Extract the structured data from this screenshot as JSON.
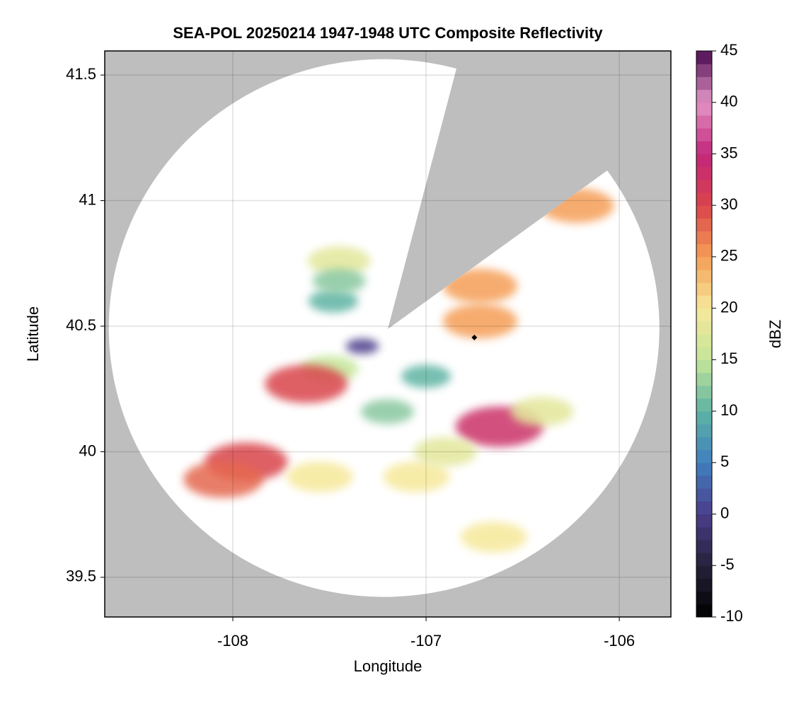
{
  "chart_data": {
    "type": "radar",
    "title": "SEA-POL 20250214 1947-1948 UTC Composite Reflectivity",
    "x_label": "Longitude",
    "y_label": "Latitude",
    "xlim": [
      -108.663,
      -105.733
    ],
    "xticks": [
      -108,
      -107,
      -106
    ],
    "ylim": [
      39.342,
      41.596
    ],
    "yticks": [
      39.5,
      40.0,
      40.5,
      41.0,
      41.5
    ],
    "grid": true,
    "cells": {
      "x": [
        -106.62,
        -107.5,
        -107.62,
        -107.33,
        -107.48,
        -107.45,
        -106.72,
        -106.72,
        -107.93,
        -107.55,
        -107.05,
        -106.65,
        -106.22,
        -106.4,
        -107.2,
        -106.9,
        -108.05,
        -107.45,
        -107.0
      ],
      "y": [
        40.1,
        40.33,
        40.27,
        40.42,
        40.6,
        40.76,
        40.52,
        40.66,
        39.96,
        39.9,
        39.9,
        39.66,
        40.98,
        40.16,
        40.16,
        40.0,
        39.89,
        40.68,
        40.3
      ],
      "values": [
        33,
        15,
        30,
        0,
        10,
        18,
        25,
        25,
        30,
        20,
        20,
        20,
        25,
        18,
        12,
        18,
        28,
        12,
        10
      ]
    },
    "markers": {
      "x": [
        -106.75
      ],
      "y": [
        40.455
      ]
    },
    "colorbar": {
      "label": "dBZ",
      "lim": [
        -10,
        45
      ],
      "ticks": [
        -10,
        -5,
        0,
        5,
        10,
        15,
        20,
        25,
        30,
        35,
        40,
        45
      ],
      "colors": [
        "#000000",
        "#26223a",
        "#4b3d8a",
        "#3f7fbf",
        "#5fb3a3",
        "#c5e69a",
        "#f6e89a",
        "#f59e56",
        "#d9444b",
        "#c2267a",
        "#e495c6",
        "#4a0b50"
      ]
    }
  }
}
